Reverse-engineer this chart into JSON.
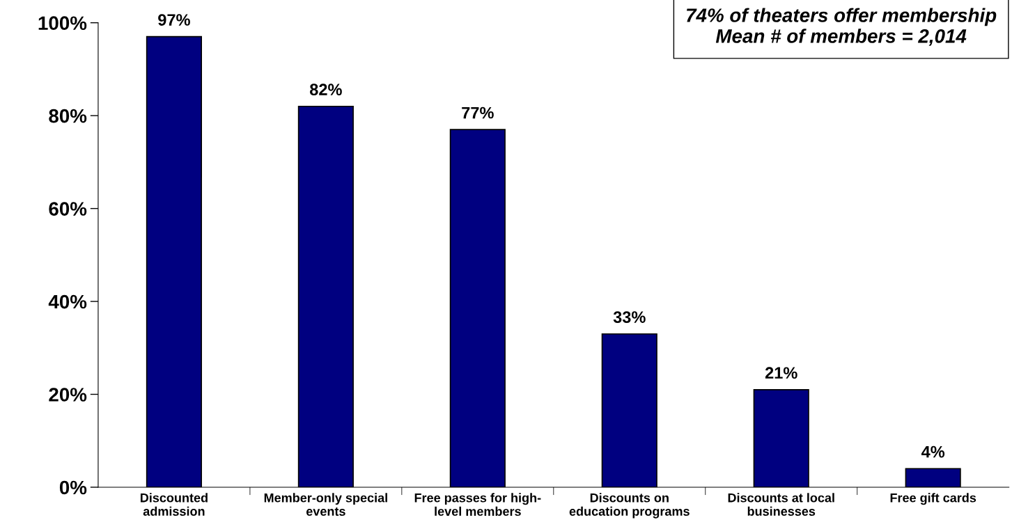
{
  "chart_data": {
    "type": "bar",
    "categories": [
      "Discounted\nadmission",
      "Member-only special\nevents",
      "Free passes for high-\nlevel members",
      "Discounts on\neducation programs",
      "Discounts at local\nbusinesses",
      "Free gift cards"
    ],
    "values": [
      97,
      82,
      77,
      33,
      21,
      4
    ],
    "value_labels": [
      "97%",
      "82%",
      "77%",
      "33%",
      "21%",
      "4%"
    ],
    "color": "#000080",
    "ylim": [
      0,
      100
    ],
    "yticks": [
      {
        "value": 0,
        "label": "0%"
      },
      {
        "value": 20,
        "label": "20%"
      },
      {
        "value": 40,
        "label": "40%"
      },
      {
        "value": 60,
        "label": "60%"
      },
      {
        "value": 80,
        "label": "80%"
      },
      {
        "value": 100,
        "label": "100%"
      }
    ],
    "grid": false,
    "annotations": [
      "74% of theaters offer membership\nMean # of members = 2,014"
    ]
  }
}
